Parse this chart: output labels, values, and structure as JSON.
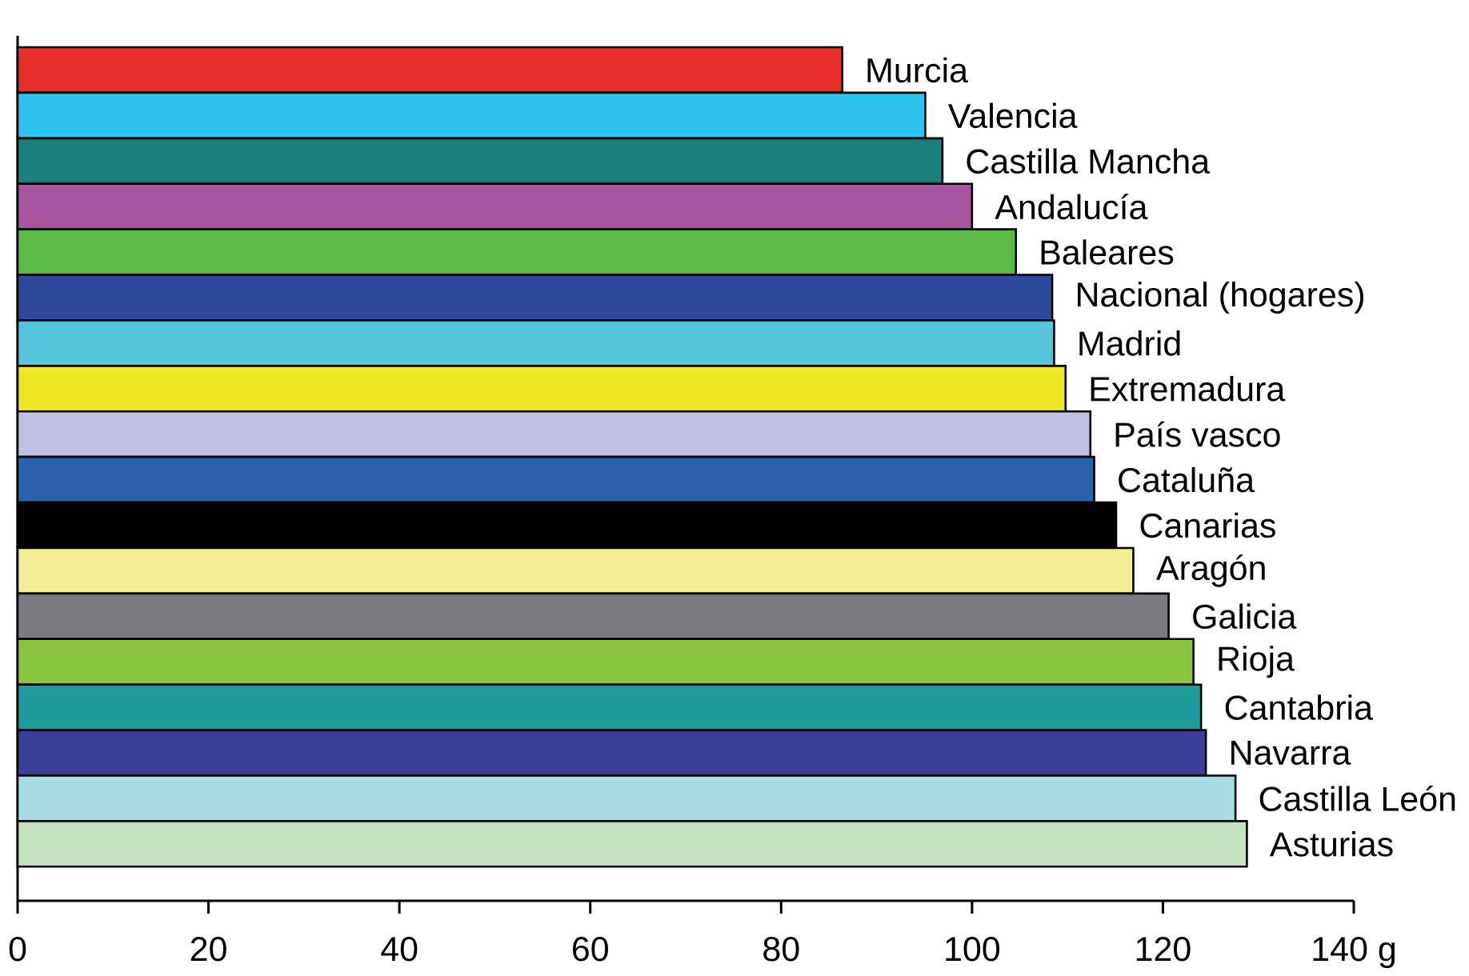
{
  "chart_data": {
    "type": "bar",
    "orientation": "horizontal",
    "categories": [
      "Murcia",
      "Valencia",
      "Castilla Mancha",
      "Andalucía",
      "Baleares",
      "Nacional (hogares)",
      "Madrid",
      "Extremadura",
      "País vasco",
      "Cataluña",
      "Canarias",
      "Aragón",
      "Galicia",
      "Rioja",
      "Cantabria",
      "Navarra",
      "Castilla León",
      "Asturias"
    ],
    "values": [
      86.4,
      95.1,
      96.9,
      100,
      104.6,
      108.4,
      108.6,
      109.8,
      112.4,
      112.8,
      115.1,
      116.9,
      120.6,
      123.2,
      124,
      124.5,
      127.6,
      128.8
    ],
    "colors": [
      "#e8302a",
      "#2ec4ef",
      "#1a7f7a",
      "#a855a0",
      "#5cba47",
      "#2e4a9c",
      "#55c5dc",
      "#ece824",
      "#c0c0e0",
      "#2b62b0",
      "#000000",
      "#f4ee98",
      "#7b7b82",
      "#8cc540",
      "#1e9a9a",
      "#3a3f98",
      "#a8dce4",
      "#c4e2c0"
    ],
    "xlim": [
      0,
      140
    ],
    "xticks": [
      0,
      20,
      40,
      60,
      80,
      100,
      120,
      {
        "value": 140,
        "label": "140 g"
      }
    ]
  }
}
